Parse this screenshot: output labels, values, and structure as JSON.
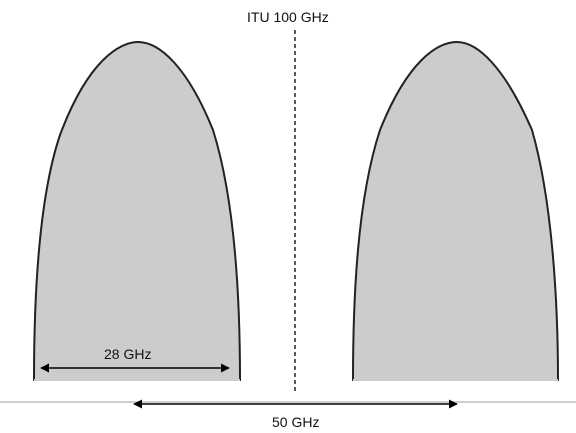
{
  "labels": {
    "itu_grid": "ITU 100 GHz",
    "channel_width": "28 GHz",
    "channel_spacing": "50 GHz"
  },
  "colors": {
    "channel_fill": "#cccccc",
    "channel_outline": "#222222",
    "baseline": "#bfbfbf",
    "arrow": "#000000"
  }
}
